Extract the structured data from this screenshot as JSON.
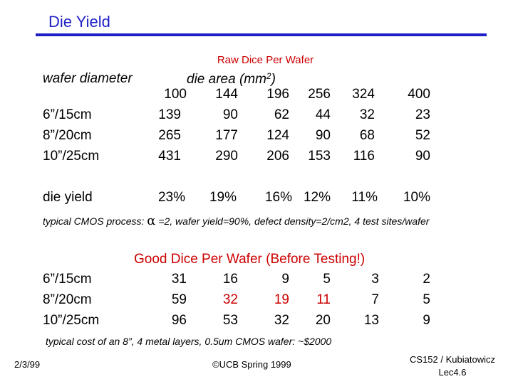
{
  "title": "Die Yield",
  "raw_section": {
    "heading": "Raw Dice Per Wafer",
    "wafer_diameter_label": "wafer diameter",
    "die_area_label": "die area (mm",
    "die_area_sup": "2",
    "die_area_close": ")",
    "die_areas": [
      "100",
      "144",
      "196",
      "256",
      "324",
      "400"
    ],
    "rows": [
      {
        "label": "6”/15cm",
        "values": [
          "139",
          "90",
          "62",
          "44",
          "32",
          "23"
        ]
      },
      {
        "label": "8”/20cm",
        "values": [
          "265",
          "177",
          "124",
          "90",
          "68",
          "52"
        ]
      },
      {
        "label": "10”/25cm",
        "values": [
          "431",
          "290",
          "206",
          "153",
          "116",
          "90"
        ]
      }
    ],
    "die_yield_label": "die yield",
    "die_yield_values": [
      "23%",
      "19%",
      "16%",
      "12%",
      "11%",
      "10%"
    ],
    "note_prefix": "typical CMOS process:",
    "note_alpha": "α",
    "note_suffix": "=2, wafer yield=90%, defect density=2/cm2, 4 test sites/wafer"
  },
  "good_section": {
    "heading": "Good Dice Per Wafer (Before Testing!)",
    "rows": [
      {
        "label": "6”/15cm",
        "values": [
          "31",
          "16",
          "9",
          "5",
          "3",
          "2"
        ]
      },
      {
        "label": "8”/20cm",
        "values": [
          "59",
          "32",
          "19",
          "11",
          "7",
          "5"
        ]
      },
      {
        "label": "10”/25cm",
        "values": [
          "96",
          "53",
          "32",
          "20",
          "13",
          "9"
        ]
      }
    ],
    "cost_note": "typical cost of an 8”, 4 metal layers, 0.5um CMOS wafer: ~$2000"
  },
  "footer": {
    "date": "2/3/99",
    "copyright": "©UCB Spring 1999",
    "course_line1": "CS152 / Kubiatowicz",
    "course_line2": "Lec4.6"
  },
  "colors": {
    "title_blue": "#1f1fc8",
    "heading_red": "#cc0000"
  }
}
